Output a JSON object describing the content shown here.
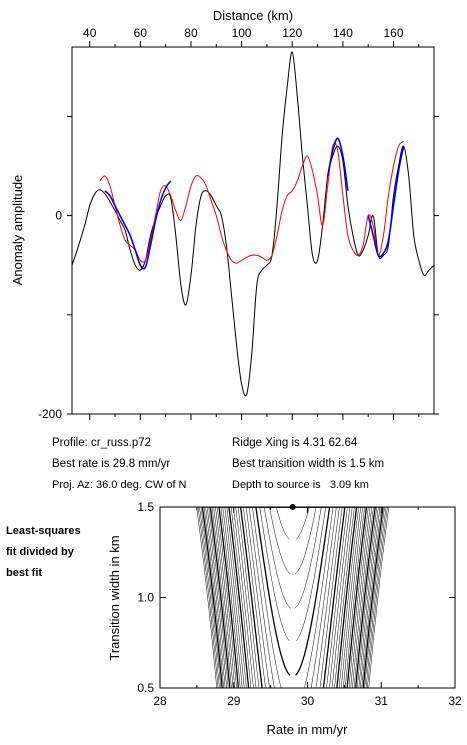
{
  "chart_data": [
    {
      "type": "line",
      "x_axis_label": "Distance (km)",
      "y_axis_label": "Anomaly amplitude",
      "xlim": [
        33,
        176
      ],
      "ylim": [
        -200,
        170
      ],
      "x_ticks": [
        40,
        60,
        80,
        100,
        120,
        140,
        160
      ],
      "y_ticks": [
        0,
        -200
      ],
      "series": [
        {
          "color": "#000000",
          "x": [
            33,
            35,
            38,
            40,
            42,
            44,
            46,
            48,
            50,
            52,
            54,
            56,
            58,
            60,
            62,
            64,
            66,
            68,
            70,
            72,
            74,
            76,
            78,
            80,
            82,
            84,
            86,
            88,
            90,
            92,
            94,
            96,
            98,
            100,
            102,
            104,
            106,
            108,
            110,
            112,
            114,
            116,
            118,
            120,
            122,
            124,
            126,
            128,
            130,
            132,
            134,
            136,
            138,
            140,
            142,
            144,
            146,
            148,
            150,
            152,
            154,
            156,
            158,
            160,
            162,
            164,
            166,
            168,
            170,
            172,
            174,
            176
          ],
          "y": [
            -50,
            -35,
            -10,
            10,
            22,
            26,
            22,
            14,
            5,
            -5,
            -15,
            -35,
            -50,
            -55,
            -45,
            -20,
            -3,
            10,
            20,
            18,
            -20,
            -70,
            -90,
            -60,
            -10,
            20,
            25,
            20,
            10,
            0,
            -30,
            -80,
            -130,
            -170,
            -180,
            -140,
            -70,
            -55,
            -50,
            -40,
            10,
            80,
            130,
            165,
            120,
            60,
            10,
            -40,
            -45,
            -10,
            40,
            60,
            70,
            55,
            10,
            -20,
            -40,
            -35,
            -20,
            0,
            -40,
            -40,
            -30,
            20,
            50,
            70,
            40,
            -20,
            -45,
            -60,
            -55,
            -50
          ]
        },
        {
          "color": "#ff0000",
          "x": [
            44,
            46,
            48,
            50,
            52,
            54,
            56,
            58,
            60,
            62,
            64,
            66,
            68,
            70,
            72,
            74,
            76,
            78,
            80,
            82,
            84,
            86,
            88,
            90,
            92,
            94,
            96,
            98,
            100,
            102,
            104,
            106,
            108,
            110,
            112,
            114,
            116,
            118,
            120,
            122,
            124,
            126,
            128,
            130,
            132,
            134,
            136,
            138,
            140,
            142,
            144,
            146,
            148,
            150,
            152,
            154,
            156,
            158,
            160,
            162,
            164
          ],
          "y": [
            35,
            40,
            30,
            10,
            -10,
            -25,
            -30,
            -35,
            -45,
            -45,
            -25,
            0,
            25,
            30,
            20,
            5,
            -5,
            10,
            30,
            40,
            38,
            30,
            15,
            0,
            -20,
            -35,
            -45,
            -48,
            -45,
            -42,
            -40,
            -40,
            -42,
            -45,
            -40,
            -20,
            5,
            20,
            25,
            35,
            50,
            60,
            45,
            20,
            -10,
            30,
            70,
            65,
            20,
            -20,
            -35,
            -40,
            -30,
            0,
            -10,
            -40,
            -20,
            20,
            50,
            70,
            75
          ]
        },
        {
          "color": "#0000ff",
          "x": [
            46,
            48,
            50,
            52,
            54,
            56,
            58,
            60,
            62,
            64,
            66,
            68,
            70,
            72
          ],
          "y": [
            25,
            20,
            10,
            0,
            -10,
            -20,
            -35,
            -50,
            -52,
            -30,
            -5,
            15,
            28,
            35
          ]
        },
        {
          "color": "#0000ff",
          "x": [
            134,
            136,
            138,
            140,
            142
          ],
          "y": [
            40,
            65,
            78,
            60,
            25
          ]
        },
        {
          "color": "#0000ff",
          "x": [
            150,
            152,
            154,
            156,
            158,
            160,
            162,
            164
          ],
          "y": [
            0,
            -20,
            -40,
            -38,
            -25,
            10,
            45,
            70
          ]
        }
      ]
    },
    {
      "type": "contour",
      "x_axis_label": "Rate in mm/yr",
      "y_axis_label": "Transition width in km",
      "xlim": [
        28,
        32
      ],
      "ylim": [
        0.5,
        1.5
      ],
      "x_ticks": [
        28,
        29,
        30,
        31,
        32
      ],
      "y_ticks": [
        0.5,
        1.0,
        1.5
      ],
      "best_fit_point": {
        "x": 29.8,
        "y": 1.5
      }
    }
  ],
  "info": {
    "profile": "Profile: cr_russ.p72",
    "best_rate": "Best rate is 29.8 mm/yr",
    "proj_az": "Proj. Az: 36.0 deg. CW of N",
    "ridge_xing": "Ridge Xing is 4.31 62.64",
    "transition": "Best transition width is 1.5 km",
    "depth": "Depth to source is   3.09 km"
  },
  "side_label": [
    "Least-squares",
    "fit divided by",
    "best fit"
  ]
}
